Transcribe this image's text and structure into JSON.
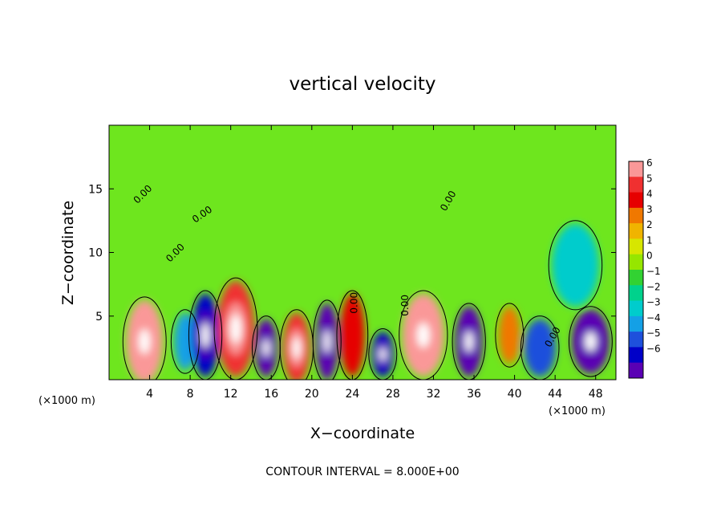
{
  "chart_data": {
    "type": "heatmap",
    "title": "vertical velocity",
    "xlabel": "X−coordinate",
    "ylabel": "Z−coordinate",
    "x_unit_left": "(×1000 m)",
    "x_unit_right": "(×1000 m)",
    "xlim": [
      0,
      50
    ],
    "ylim": [
      0,
      20
    ],
    "xticks": [
      4,
      8,
      12,
      16,
      20,
      24,
      28,
      32,
      36,
      40,
      44,
      48
    ],
    "yticks": [
      5,
      10,
      15
    ],
    "colorbar": {
      "ticks": [
        "6",
        "5",
        "4",
        "3",
        "2",
        "1",
        "0",
        "−1",
        "−2",
        "−3",
        "−4",
        "−5",
        "−6"
      ],
      "colors": [
        "#fa9898",
        "#f03030",
        "#e60000",
        "#f07800",
        "#f0b400",
        "#d7e600",
        "#96e600",
        "#32d232",
        "#00d28c",
        "#00cccc",
        "#14a0e6",
        "#1e50dc",
        "#0000c8",
        "#5a00b4"
      ],
      "range": [
        -6,
        6
      ]
    },
    "contour_labels": [
      "0.00",
      "0.00",
      "0.00",
      "0.00",
      "0.00",
      "0.00",
      "0.00"
    ],
    "cells": [
      {
        "x": 3.5,
        "w": 3.0,
        "z": 3.0,
        "h": 6.0,
        "v": 6
      },
      {
        "x": 7.5,
        "w": 1.5,
        "z": 3.0,
        "h": 4.0,
        "v": -3
      },
      {
        "x": 9.5,
        "w": 2.0,
        "z": 3.5,
        "h": 6.0,
        "v": -5
      },
      {
        "x": 12.5,
        "w": 3.0,
        "z": 4.0,
        "h": 7.0,
        "v": 5
      },
      {
        "x": 15.5,
        "w": 1.5,
        "z": 2.5,
        "h": 4.0,
        "v": -6
      },
      {
        "x": 18.5,
        "w": 2.0,
        "z": 2.5,
        "h": 5.0,
        "v": 5
      },
      {
        "x": 21.5,
        "w": 1.5,
        "z": 3.0,
        "h": 5.5,
        "v": -6
      },
      {
        "x": 24.0,
        "w": 1.8,
        "z": 3.5,
        "h": 6.0,
        "v": 4
      },
      {
        "x": 27.0,
        "w": 1.5,
        "z": 2.0,
        "h": 3.0,
        "v": -5
      },
      {
        "x": 31.0,
        "w": 3.5,
        "z": 3.5,
        "h": 6.0,
        "v": 6
      },
      {
        "x": 35.5,
        "w": 2.0,
        "z": 3.0,
        "h": 5.0,
        "v": -6
      },
      {
        "x": 39.5,
        "w": 1.5,
        "z": 3.5,
        "h": 4.0,
        "v": 3
      },
      {
        "x": 42.5,
        "w": 2.5,
        "z": 2.5,
        "h": 4.0,
        "v": -4
      },
      {
        "x": 47.5,
        "w": 3.0,
        "z": 3.0,
        "h": 4.5,
        "v": -6
      },
      {
        "x": 46.0,
        "w": 4.0,
        "z": 9.0,
        "h": 6.0,
        "v": -2
      }
    ]
  },
  "footer": "CONTOUR INTERVAL =  8.000E+00"
}
